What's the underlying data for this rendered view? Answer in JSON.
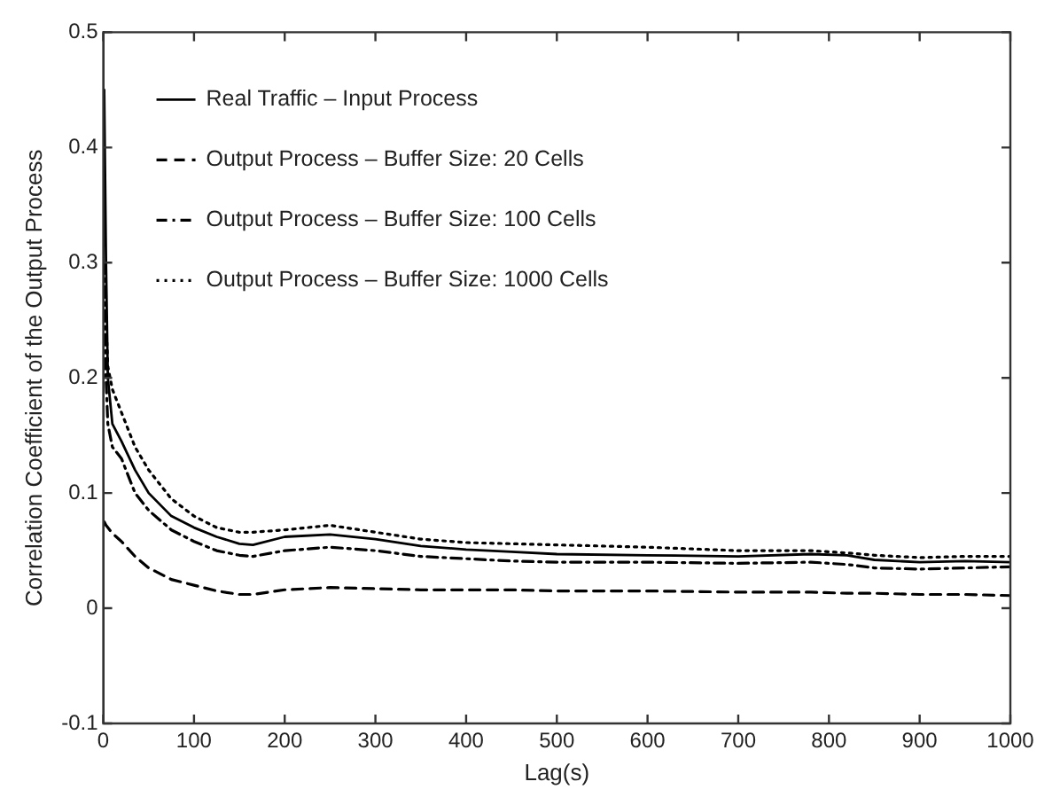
{
  "chart_data": {
    "type": "line",
    "xlabel": "Lag(s)",
    "ylabel": "Correlation Coefficient of the Output Process",
    "xlim": [
      0,
      1000
    ],
    "ylim": [
      -0.1,
      0.5
    ],
    "xticks": [
      0,
      100,
      200,
      300,
      400,
      500,
      600,
      700,
      800,
      900,
      1000
    ],
    "yticks": [
      -0.1,
      0,
      0.1,
      0.2,
      0.3,
      0.4,
      0.5
    ],
    "grid": false,
    "legend": "top left",
    "marker": "none",
    "x": [
      1,
      3,
      5,
      10,
      20,
      35,
      50,
      75,
      100,
      125,
      150,
      165,
      200,
      250,
      300,
      350,
      400,
      450,
      500,
      600,
      700,
      780,
      820,
      850,
      900,
      950,
      1000
    ],
    "series": [
      {
        "name": "Real Traffic – Input Process",
        "color": "#000000",
        "line_style": "solid",
        "values": [
          0.45,
          0.3,
          0.2,
          0.16,
          0.145,
          0.12,
          0.1,
          0.08,
          0.07,
          0.062,
          0.056,
          0.055,
          0.062,
          0.064,
          0.06,
          0.054,
          0.051,
          0.049,
          0.047,
          0.046,
          0.045,
          0.047,
          0.046,
          0.042,
          0.04,
          0.041,
          0.04
        ]
      },
      {
        "name": "Output Process – Buffer Size: 20 Cells",
        "color": "#000000",
        "line_style": "dashed",
        "values": [
          0.075,
          0.072,
          0.07,
          0.065,
          0.058,
          0.045,
          0.035,
          0.025,
          0.02,
          0.015,
          0.012,
          0.012,
          0.016,
          0.018,
          0.017,
          0.016,
          0.016,
          0.016,
          0.015,
          0.015,
          0.014,
          0.014,
          0.013,
          0.013,
          0.012,
          0.012,
          0.011
        ]
      },
      {
        "name": "Output Process – Buffer Size: 100 Cells",
        "color": "#000000",
        "line_style": "dashdot",
        "values": [
          0.3,
          0.2,
          0.16,
          0.14,
          0.13,
          0.1,
          0.085,
          0.068,
          0.058,
          0.05,
          0.046,
          0.045,
          0.05,
          0.053,
          0.05,
          0.045,
          0.043,
          0.041,
          0.04,
          0.04,
          0.039,
          0.04,
          0.038,
          0.035,
          0.034,
          0.035,
          0.036
        ]
      },
      {
        "name": "Output Process – Buffer Size: 1000 Cells",
        "color": "#000000",
        "line_style": "dotted",
        "values": [
          0.3,
          0.25,
          0.21,
          0.19,
          0.17,
          0.14,
          0.12,
          0.095,
          0.08,
          0.07,
          0.066,
          0.066,
          0.068,
          0.072,
          0.066,
          0.06,
          0.057,
          0.056,
          0.055,
          0.053,
          0.05,
          0.05,
          0.048,
          0.046,
          0.044,
          0.045,
          0.045
        ]
      }
    ]
  }
}
